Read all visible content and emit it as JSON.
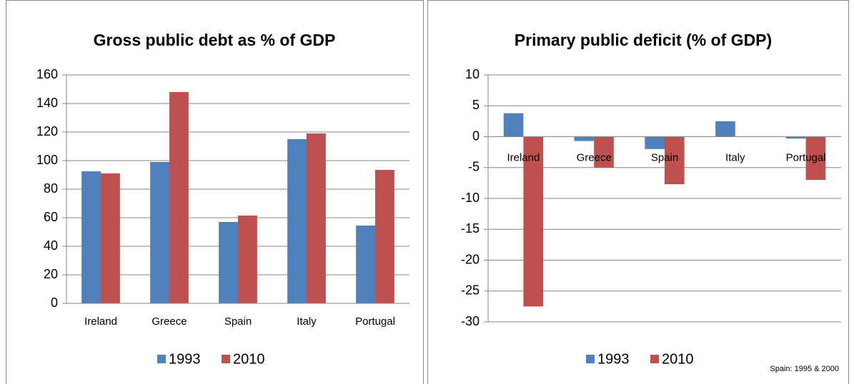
{
  "chart_data": [
    {
      "type": "bar",
      "title": "Gross public debt as % of GDP",
      "categories": [
        "Ireland",
        "Greece",
        "Spain",
        "Italy",
        "Portugal"
      ],
      "series": [
        {
          "name": "1993",
          "color": "#4f81bd",
          "values": [
            92.5,
            99,
            57,
            115,
            54.5
          ]
        },
        {
          "name": "2010",
          "color": "#c0504d",
          "values": [
            91,
            148,
            61.5,
            119,
            93.5
          ]
        }
      ],
      "ylim": [
        0,
        160
      ],
      "yticks": [
        0,
        20,
        40,
        60,
        80,
        100,
        120,
        140,
        160
      ],
      "grid": true,
      "legend": "bottom"
    },
    {
      "type": "bar",
      "title": "Primary public deficit (% of GDP)",
      "categories": [
        "Ireland",
        "Greece",
        "Spain",
        "Italy",
        "Portugal"
      ],
      "series": [
        {
          "name": "1993",
          "color": "#4f81bd",
          "values": [
            3.8,
            -0.7,
            -2,
            2.5,
            -0.3
          ]
        },
        {
          "name": "2010",
          "color": "#c0504d",
          "values": [
            -27.5,
            -5,
            -7.7,
            0,
            -7
          ]
        }
      ],
      "ylim": [
        -30,
        10
      ],
      "yticks": [
        -30,
        -25,
        -20,
        -15,
        -10,
        -5,
        0,
        5,
        10
      ],
      "grid": true,
      "legend": "bottom",
      "note": "Spain: 1995 & 2000"
    }
  ]
}
